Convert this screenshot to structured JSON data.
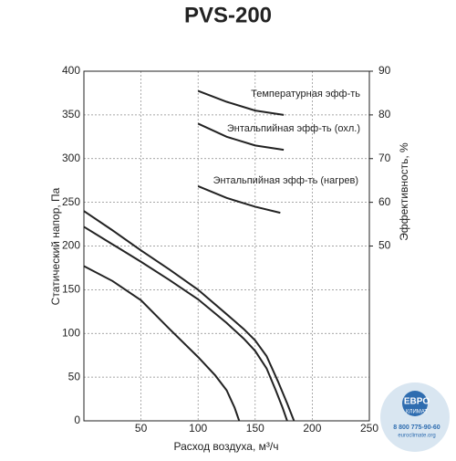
{
  "chart_data": {
    "type": "line",
    "title": "PVS-200",
    "x_label": "Расход воздуха, м³/ч",
    "y_label": "Статический напор, Па",
    "y2_label": "Эффективность, %",
    "xlim": [
      0,
      250
    ],
    "xticks": [
      50,
      100,
      150,
      200,
      250
    ],
    "ylim": [
      0,
      400
    ],
    "yticks": [
      0,
      50,
      100,
      150,
      200,
      250,
      300,
      350,
      400
    ],
    "y2lim": [
      10,
      90
    ],
    "y2ticks": [
      50,
      60,
      70,
      80,
      90
    ],
    "grid": true,
    "series": [
      {
        "color": "#222222",
        "x": [
          0,
          25,
          50,
          75,
          100,
          125,
          140,
          150,
          160,
          170,
          178,
          184
        ],
        "values": [
          240,
          218,
          195,
          173,
          150,
          122,
          105,
          92,
          74,
          45,
          20,
          0
        ]
      },
      {
        "color": "#222222",
        "x": [
          0,
          25,
          50,
          75,
          100,
          125,
          140,
          150,
          160,
          168,
          174,
          178
        ],
        "values": [
          222,
          202,
          182,
          161,
          139,
          112,
          94,
          80,
          60,
          35,
          15,
          0
        ]
      },
      {
        "color": "#222222",
        "x": [
          0,
          25,
          50,
          75,
          100,
          115,
          125,
          132,
          136
        ],
        "values": [
          177,
          160,
          138,
          105,
          73,
          52,
          35,
          15,
          0
        ]
      },
      {
        "name": "Температурная эфф-ть",
        "axis": "y2",
        "color": "#222222",
        "x": [
          100,
          125,
          150,
          175
        ],
        "values": [
          85.5,
          83,
          81,
          80
        ]
      },
      {
        "name": "Энтальпийная эфф-ть (охл.)",
        "axis": "y2",
        "color": "#222222",
        "x": [
          100,
          125,
          150,
          175
        ],
        "values": [
          78,
          75,
          73,
          72
        ]
      },
      {
        "name": "Энтальпийная эфф-ть (нагрев)",
        "axis": "y2",
        "color": "#222222",
        "x": [
          100,
          125,
          150,
          172
        ],
        "values": [
          63.7,
          61,
          59,
          57.6
        ]
      }
    ]
  },
  "logo": {
    "brand_top": "ЕВРО",
    "brand_bottom": "КЛИМАТ",
    "phone": "8 800 775-90-60",
    "site": "euroclimate.org"
  }
}
